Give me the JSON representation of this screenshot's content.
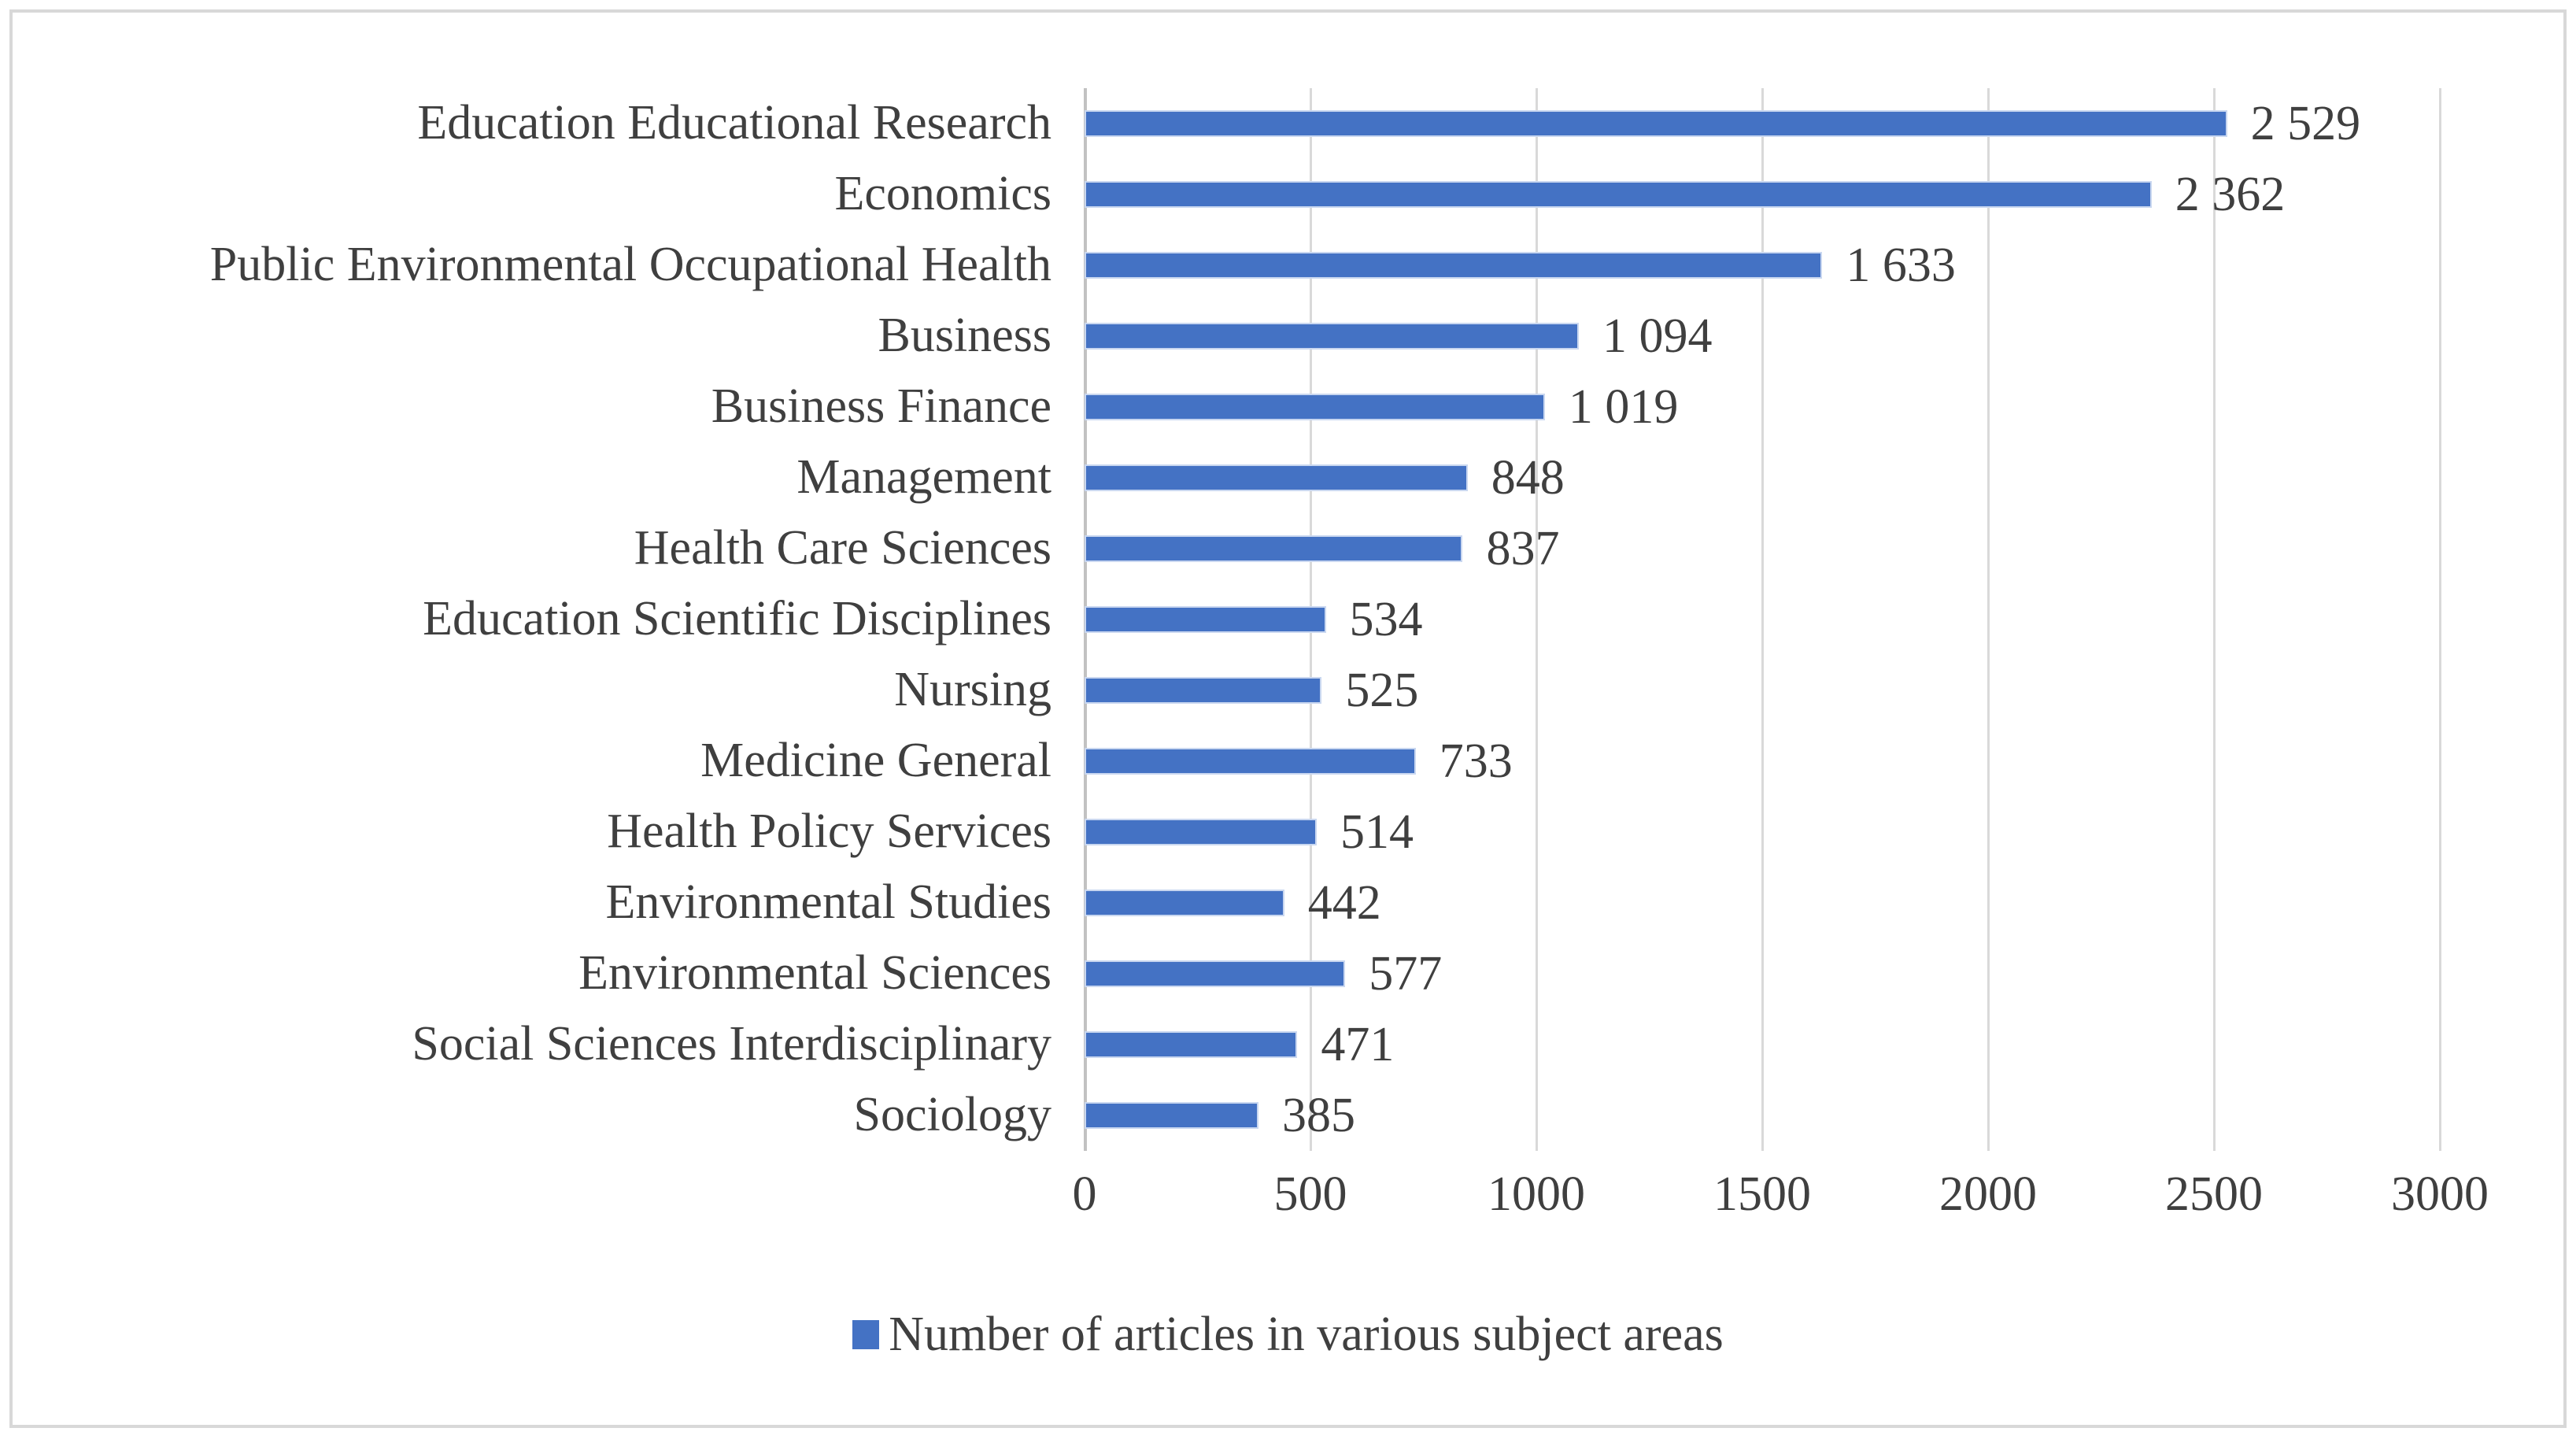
{
  "chart_data": {
    "type": "bar",
    "orientation": "horizontal",
    "title": "",
    "xlabel": "",
    "ylabel": "",
    "categories": [
      "Education Educational Research",
      "Economics",
      "Public Environmental Occupational Health",
      "Business",
      "Business Finance",
      "Management",
      "Health Care Sciences",
      "Education Scientific Disciplines",
      "Nursing",
      "Medicine General",
      "Health Policy Services",
      "Environmental Studies",
      "Environmental Sciences",
      "Social Sciences Interdisciplinary",
      "Sociology"
    ],
    "values": [
      2529,
      2362,
      1633,
      1094,
      1019,
      848,
      837,
      534,
      525,
      733,
      514,
      442,
      577,
      471,
      385
    ],
    "value_labels": [
      "2 529",
      "2 362",
      "1 633",
      "1 094",
      "1 019",
      "848",
      "837",
      "534",
      "525",
      "733",
      "514",
      "442",
      "577",
      "471",
      "385"
    ],
    "x_ticks": [
      0,
      500,
      1000,
      1500,
      2000,
      2500,
      3000
    ],
    "xlim": [
      0,
      3000
    ],
    "grid": true,
    "legend_position": "bottom",
    "legend": "Number of articles in various subject areas",
    "bar_color": "#4472C4",
    "gridline_color": "#d9d9d9",
    "text_color": "#3f3f3f"
  }
}
